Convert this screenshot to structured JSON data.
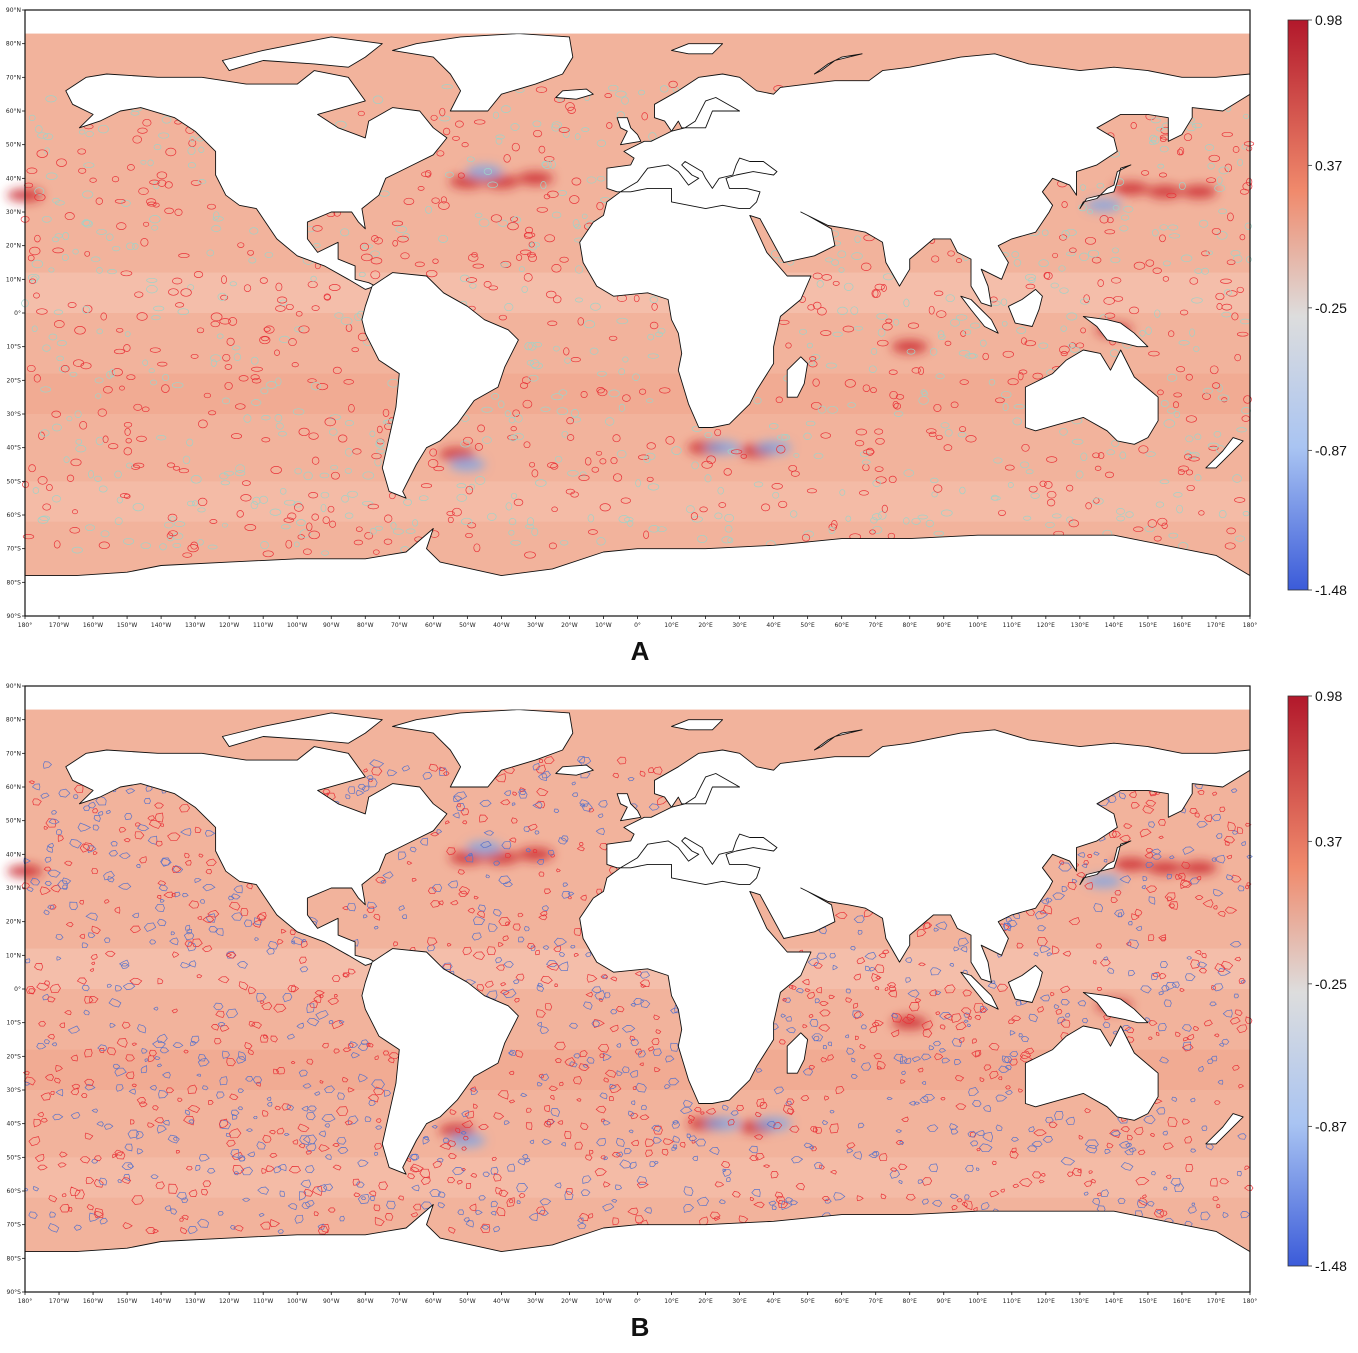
{
  "panels": [
    {
      "id": "A",
      "label": "A",
      "colorbar": {
        "max": "0.98",
        "upper": "0.37",
        "mid": "-0.25",
        "lower": "-0.87",
        "min": "-1.48"
      },
      "contour_style": "ellipses",
      "contour_colors": [
        "#e8343a",
        "#9fd3c9"
      ]
    },
    {
      "id": "B",
      "label": "B",
      "colorbar": {
        "max": "0.98",
        "upper": "0.37",
        "mid": "-0.25",
        "lower": "-0.87",
        "min": "-1.48"
      },
      "contour_style": "irregular",
      "contour_colors": [
        "#e8343a",
        "#5b73c9"
      ]
    }
  ],
  "colors": {
    "ocean": "#f2b39c",
    "ocean_warm": "#ef9f86",
    "ocean_band": "#f5c3b0",
    "hot": "#c91f2a",
    "cold": "#7aa6e8",
    "land": "#ffffff",
    "coast": "#111111",
    "colorbar_top": "#b2182b",
    "colorbar_mid": "#dddddd",
    "colorbar_bottom": "#3b5bd9"
  },
  "map_axes": {
    "lon_ticks": [
      "180°",
      "170°W",
      "160°W",
      "150°W",
      "140°W",
      "130°W",
      "120°W",
      "110°W",
      "100°W",
      "90°W",
      "80°W",
      "70°W",
      "60°W",
      "50°W",
      "40°W",
      "30°W",
      "20°W",
      "10°W",
      "0°",
      "10°E",
      "20°E",
      "30°E",
      "40°E",
      "50°E",
      "60°E",
      "70°E",
      "80°E",
      "90°E",
      "100°E",
      "110°E",
      "120°E",
      "130°E",
      "140°E",
      "150°E",
      "160°E",
      "170°E",
      "180°"
    ],
    "lat_ticks": [
      "90°N",
      "80°N",
      "70°N",
      "60°N",
      "50°N",
      "40°N",
      "30°N",
      "20°N",
      "10°N",
      "0°",
      "10°S",
      "20°S",
      "30°S",
      "40°S",
      "50°S",
      "60°S",
      "70°S",
      "80°S",
      "90°S"
    ]
  }
}
